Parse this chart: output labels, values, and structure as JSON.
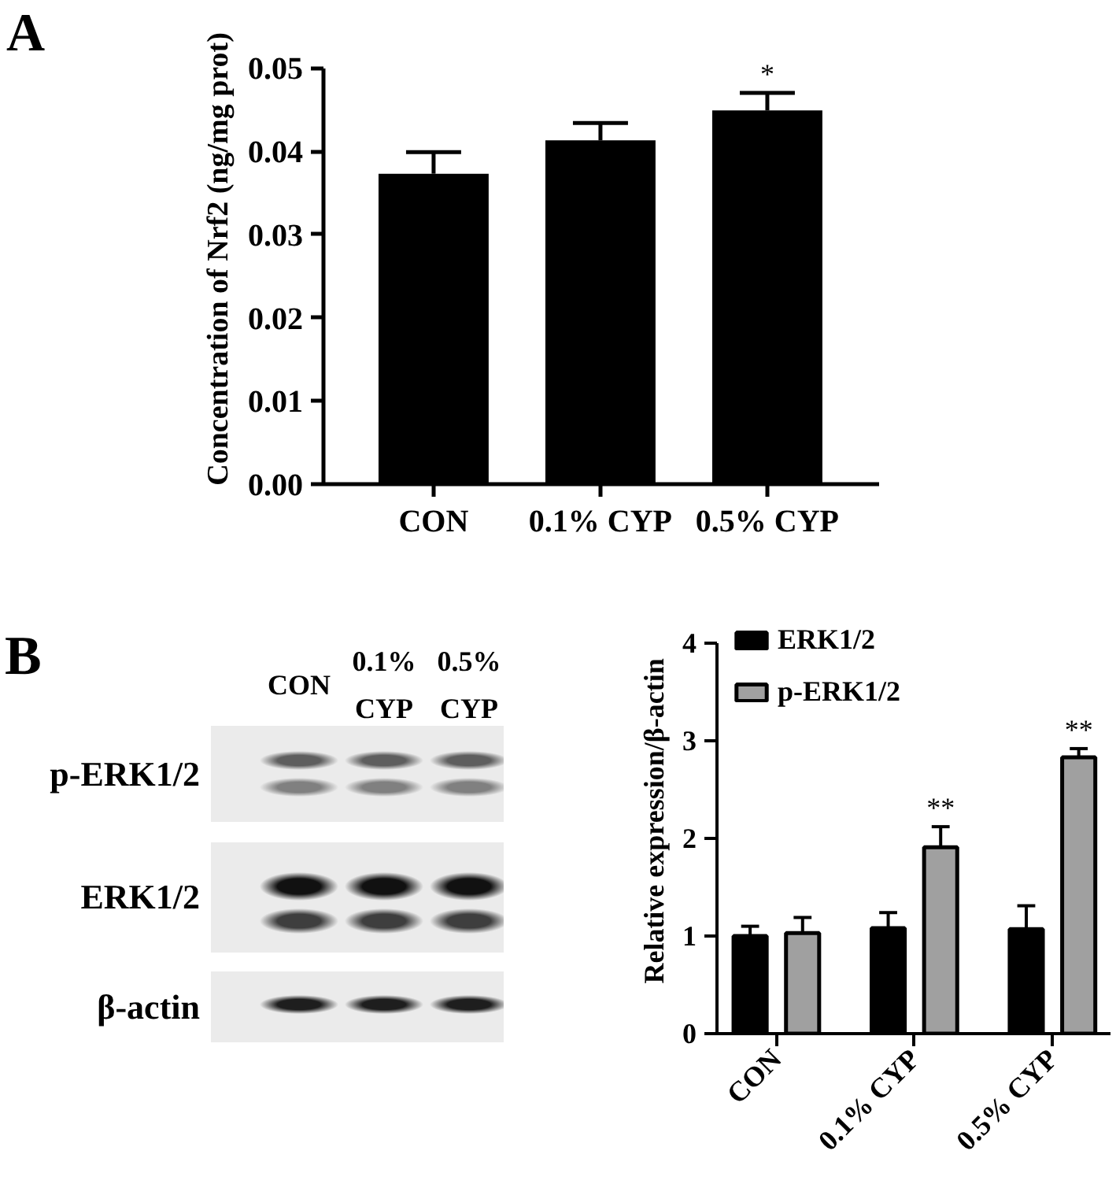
{
  "chart_data": [
    {
      "type": "bar",
      "title": "A",
      "categories": [
        "CON",
        "0.1% CYP",
        "0.5% CYP"
      ],
      "values": [
        0.0373,
        0.0413,
        0.0449
      ],
      "errors": [
        [
          0.0373,
          0.0399
        ],
        [
          0.0413,
          0.0434
        ],
        [
          0.0449,
          0.047
        ]
      ],
      "color": "#000000",
      "ylabel": "Concentration of Nrf2 (ng/mg prot)",
      "ylim": [
        0,
        0.05
      ],
      "yticks": [
        {
          "value": 0,
          "label": "0.00"
        },
        0.01,
        0.02,
        0.03,
        0.04,
        0.05
      ],
      "annotations": [
        {
          "text": "*",
          "x": "0.5% CYP",
          "y": 0.047
        }
      ]
    },
    {
      "type": "other",
      "title": "B",
      "categories": [
        "CON",
        "0.1% CYP",
        "0.5% CYP"
      ],
      "y_categories": [
        "p-ERK1/2",
        "ERK1/2",
        "β-actin"
      ]
    },
    {
      "type": "bar",
      "categories": [
        "CON",
        "0.1% CYP",
        "0.5% CYP"
      ],
      "series": [
        {
          "name": "ERK1/2",
          "color": "#000000",
          "values": [
            1.0,
            1.08,
            1.07
          ],
          "errors": [
            [
              1.0,
              1.1
            ],
            [
              1.08,
              1.24
            ],
            [
              1.07,
              1.31
            ]
          ]
        },
        {
          "name": "p-ERK1/2",
          "color": "#a0a0a0",
          "values": [
            1.03,
            1.91,
            2.83
          ],
          "errors": [
            [
              1.03,
              1.19
            ],
            [
              1.91,
              2.12
            ],
            [
              2.83,
              2.92
            ]
          ],
          "value_labels": [
            null,
            "**",
            "**"
          ]
        }
      ],
      "ylabel": "Relative expression/β-actin",
      "ylim": [
        0,
        4
      ],
      "yticks": [
        0,
        1,
        2,
        3,
        4
      ],
      "legend": "top left"
    }
  ]
}
